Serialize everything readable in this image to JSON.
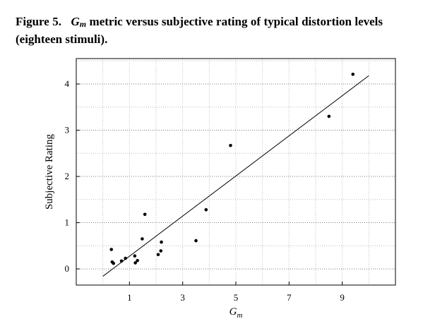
{
  "caption": {
    "figure_label": "Figure 5.",
    "symbol_main": "G",
    "symbol_sub": "m",
    "text": "metric versus subjective rating of typical distortion levels (eighteen stimuli)."
  },
  "chart_data": {
    "type": "scatter",
    "xlabel_main": "G",
    "xlabel_sub": "m",
    "ylabel": "Subjective Rating",
    "xlim": [
      -1,
      11
    ],
    "ylim": [
      -0.35,
      4.55
    ],
    "xticks": [
      1,
      3,
      5,
      7,
      9
    ],
    "yticks": [
      0,
      1,
      2,
      3,
      4
    ],
    "grid": true,
    "points": [
      {
        "x": 0.32,
        "y": 0.42
      },
      {
        "x": 0.35,
        "y": 0.15
      },
      {
        "x": 0.4,
        "y": 0.12
      },
      {
        "x": 0.7,
        "y": 0.17
      },
      {
        "x": 0.85,
        "y": 0.23
      },
      {
        "x": 1.2,
        "y": 0.28
      },
      {
        "x": 1.22,
        "y": 0.13
      },
      {
        "x": 1.3,
        "y": 0.18
      },
      {
        "x": 1.48,
        "y": 0.65
      },
      {
        "x": 1.58,
        "y": 1.18
      },
      {
        "x": 2.08,
        "y": 0.31
      },
      {
        "x": 2.18,
        "y": 0.39
      },
      {
        "x": 2.2,
        "y": 0.58
      },
      {
        "x": 3.5,
        "y": 0.61
      },
      {
        "x": 3.88,
        "y": 1.28
      },
      {
        "x": 4.8,
        "y": 2.67
      },
      {
        "x": 8.5,
        "y": 3.3
      },
      {
        "x": 9.4,
        "y": 4.21
      }
    ],
    "fit_line": {
      "x": [
        0.0,
        10.0
      ],
      "y": [
        -0.16,
        4.18
      ]
    },
    "colors": {
      "points": "#000000",
      "line": "#000000",
      "grid": "#bbbbbb",
      "frame": "#000000"
    }
  }
}
